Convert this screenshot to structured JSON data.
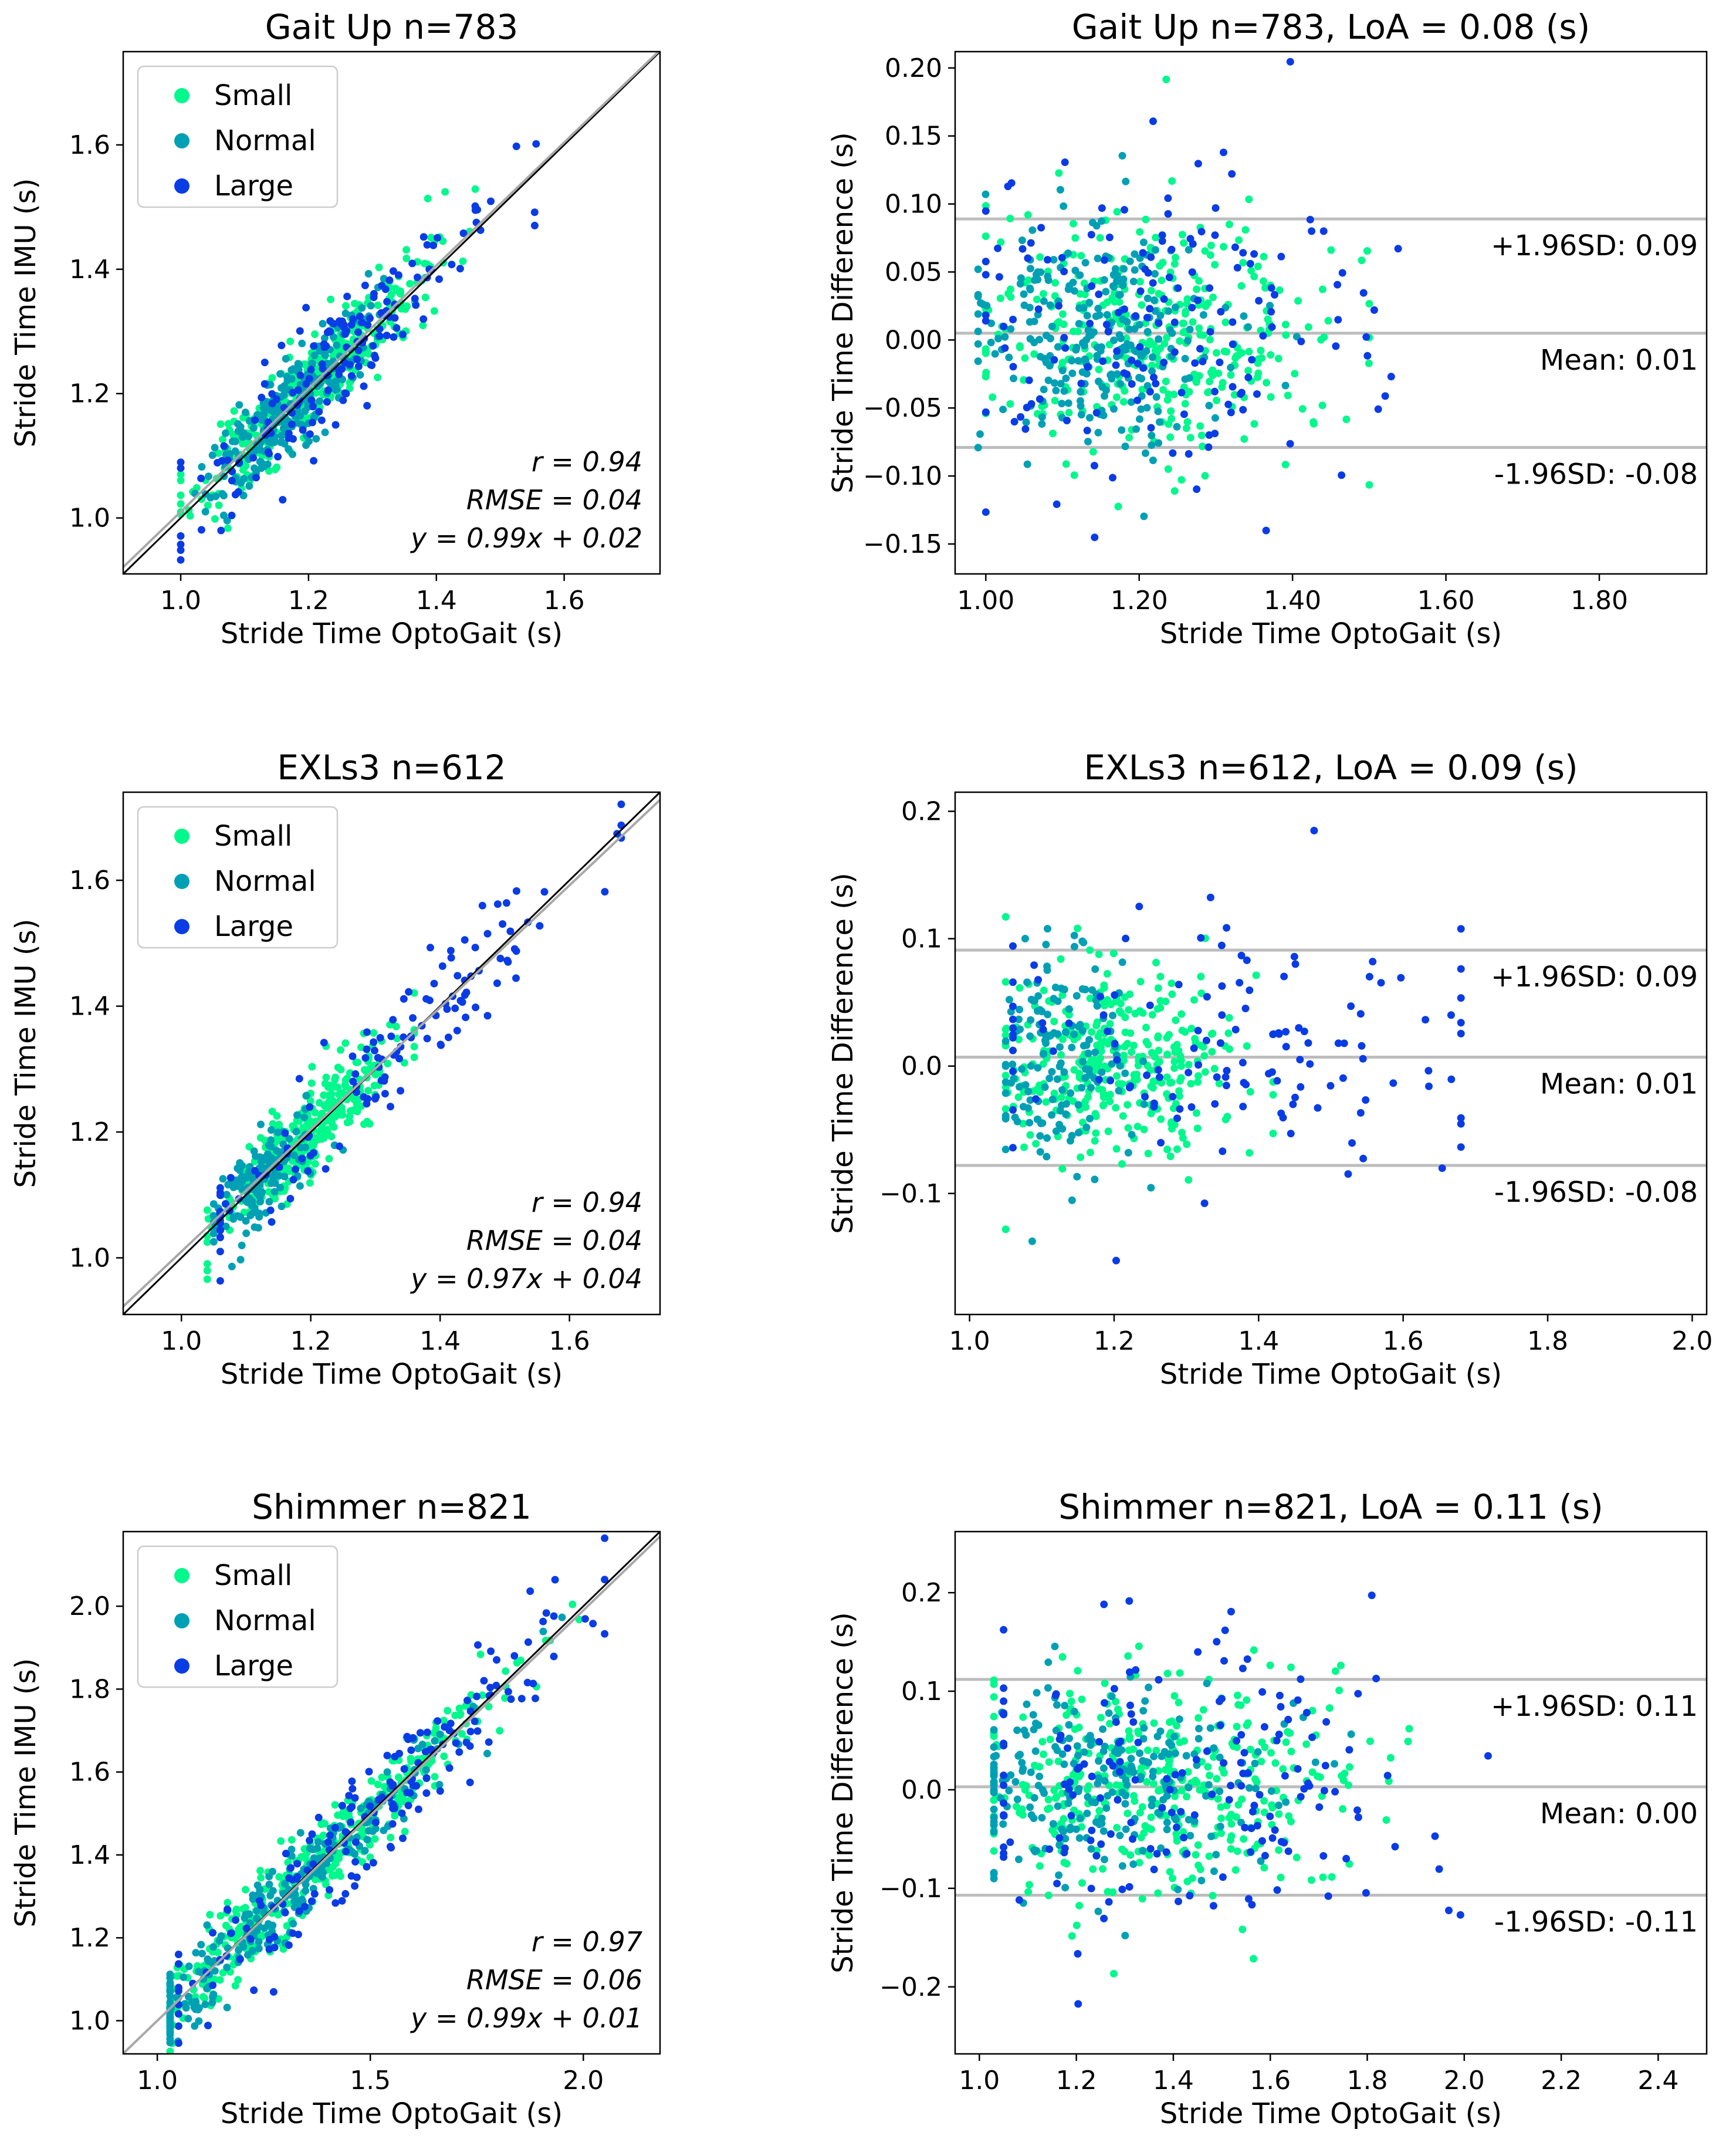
{
  "colors": {
    "small": "#00f88c",
    "normal": "#00a0b4",
    "large": "#0a3ce6",
    "identity_line": "#000000",
    "regression_line": "#a8a8a8",
    "bland_altman_lines": "#bdbdbd"
  },
  "chart_data": [
    {
      "id": "gaitup-scatter",
      "type": "scatter",
      "title": "Gait Up  n=783",
      "xlabel": "Stride Time OptoGait (s)",
      "ylabel": "Stride Time IMU (s)",
      "xlim": [
        0.91,
        1.75
      ],
      "ylim": [
        0.91,
        1.75
      ],
      "xticks": [
        1.0,
        1.2,
        1.4,
        1.6
      ],
      "yticks": [
        1.0,
        1.2,
        1.4,
        1.6
      ],
      "tick_decimals": 1,
      "grid": false,
      "legend": {
        "placement": "top-left",
        "entries": [
          "Small",
          "Normal",
          "Large"
        ]
      },
      "stats": {
        "r": "r = 0.94",
        "rmse": "RMSE = 0.04",
        "fit": "y = 0.99x + 0.02"
      },
      "fit": {
        "slope": 0.99,
        "intercept": 0.02
      },
      "series": [
        {
          "name": "Small",
          "color_key": "small",
          "n": 360,
          "x_center": 1.2,
          "x_sd": 0.09,
          "x_min": 1.0,
          "x_max": 1.55,
          "slope": 0.99,
          "intercept": 0.02,
          "y_sd": 0.035,
          "seed": 11
        },
        {
          "name": "Normal",
          "color_key": "normal",
          "n": 260,
          "x_center": 1.17,
          "x_sd": 0.06,
          "x_min": 0.98,
          "x_max": 1.5,
          "slope": 0.99,
          "intercept": 0.02,
          "y_sd": 0.035,
          "seed": 12
        },
        {
          "name": "Large",
          "color_key": "large",
          "n": 163,
          "x_center": 1.22,
          "x_sd": 0.13,
          "x_min": 1.0,
          "x_max": 1.62,
          "slope": 0.99,
          "intercept": 0.02,
          "y_sd": 0.05,
          "seed": 13
        }
      ]
    },
    {
      "id": "gaitup-ba",
      "type": "scatter",
      "title": "Gait Up  n=783,   LoA = 0.08 (s)",
      "xlabel": "Stride Time OptoGait (s)",
      "ylabel": "Stride Time Difference (s)",
      "xlim": [
        0.96,
        1.94
      ],
      "ylim": [
        -0.172,
        0.212
      ],
      "xticks": [
        1.0,
        1.2,
        1.4,
        1.6,
        1.8
      ],
      "yticks": [
        -0.15,
        -0.1,
        -0.05,
        0.0,
        0.05,
        0.1,
        0.15,
        0.2
      ],
      "tick_decimals": 2,
      "grid": false,
      "lines": [
        {
          "y": 0.089,
          "label": "+1.96SD: 0.09"
        },
        {
          "y": 0.005,
          "label": "Mean: 0.01"
        },
        {
          "y": -0.079,
          "label": "-1.96SD: -0.08"
        }
      ],
      "series": [
        {
          "name": "Small",
          "color_key": "small",
          "n": 360,
          "x_center": 1.22,
          "x_sd": 0.12,
          "x_min": 1.0,
          "x_max": 1.5,
          "mean": 0.004,
          "y_sd": 0.045,
          "seed": 21
        },
        {
          "name": "Normal",
          "color_key": "normal",
          "n": 260,
          "x_center": 1.14,
          "x_sd": 0.08,
          "x_min": 0.99,
          "x_max": 1.45,
          "mean": 0.004,
          "y_sd": 0.04,
          "seed": 22
        },
        {
          "name": "Large",
          "color_key": "large",
          "n": 163,
          "x_center": 1.22,
          "x_sd": 0.14,
          "x_min": 1.0,
          "x_max": 1.63,
          "mean": 0.008,
          "y_sd": 0.06,
          "seed": 23
        }
      ]
    },
    {
      "id": "exls3-scatter",
      "type": "scatter",
      "title": "EXLs3  n=612",
      "xlabel": "Stride Time OptoGait (s)",
      "ylabel": "Stride Time IMU (s)",
      "xlim": [
        0.91,
        1.74
      ],
      "ylim": [
        0.91,
        1.74
      ],
      "xticks": [
        1.0,
        1.2,
        1.4,
        1.6
      ],
      "yticks": [
        1.0,
        1.2,
        1.4,
        1.6
      ],
      "tick_decimals": 1,
      "grid": false,
      "legend": {
        "placement": "top-left",
        "entries": [
          "Small",
          "Normal",
          "Large"
        ]
      },
      "stats": {
        "r": "r = 0.94",
        "rmse": "RMSE = 0.04",
        "fit": "y = 0.97x + 0.04"
      },
      "fit": {
        "slope": 0.97,
        "intercept": 0.04
      },
      "series": [
        {
          "name": "Small",
          "color_key": "small",
          "n": 330,
          "x_center": 1.2,
          "x_sd": 0.07,
          "x_min": 1.04,
          "x_max": 1.36,
          "slope": 0.97,
          "intercept": 0.04,
          "y_sd": 0.035,
          "seed": 31
        },
        {
          "name": "Normal",
          "color_key": "normal",
          "n": 150,
          "x_center": 1.12,
          "x_sd": 0.04,
          "x_min": 1.05,
          "x_max": 1.25,
          "slope": 0.97,
          "intercept": 0.04,
          "y_sd": 0.035,
          "seed": 32
        },
        {
          "name": "Large",
          "color_key": "large",
          "n": 132,
          "x_center": 1.3,
          "x_sd": 0.19,
          "x_min": 1.06,
          "x_max": 1.68,
          "slope": 0.97,
          "intercept": 0.04,
          "y_sd": 0.045,
          "seed": 33
        }
      ]
    },
    {
      "id": "exls3-ba",
      "type": "scatter",
      "title": "EXLs3  n=612,   LoA = 0.09 (s)",
      "xlabel": "Stride Time OptoGait (s)",
      "ylabel": "Stride Time Difference (s)",
      "xlim": [
        0.98,
        2.02
      ],
      "ylim": [
        -0.195,
        0.215
      ],
      "xticks": [
        1.0,
        1.2,
        1.4,
        1.6,
        1.8,
        2.0
      ],
      "yticks": [
        -0.1,
        0.0,
        0.1,
        0.2
      ],
      "tick_decimals": 1,
      "grid": false,
      "lines": [
        {
          "y": 0.091,
          "label": "+1.96SD: 0.09"
        },
        {
          "y": 0.007,
          "label": "Mean: 0.01"
        },
        {
          "y": -0.078,
          "label": "-1.96SD: -0.08"
        }
      ],
      "series": [
        {
          "name": "Small",
          "color_key": "small",
          "n": 330,
          "x_center": 1.2,
          "x_sd": 0.08,
          "x_min": 1.05,
          "x_max": 1.42,
          "mean": 0.006,
          "y_sd": 0.04,
          "seed": 41
        },
        {
          "name": "Normal",
          "color_key": "normal",
          "n": 150,
          "x_center": 1.12,
          "x_sd": 0.05,
          "x_min": 1.05,
          "x_max": 1.3,
          "mean": 0.01,
          "y_sd": 0.045,
          "seed": 42
        },
        {
          "name": "Large",
          "color_key": "large",
          "n": 132,
          "x_center": 1.35,
          "x_sd": 0.2,
          "x_min": 1.06,
          "x_max": 1.68,
          "mean": 0.005,
          "y_sd": 0.055,
          "seed": 43
        }
      ]
    },
    {
      "id": "shimmer-scatter",
      "type": "scatter",
      "title": "Shimmer  n=821",
      "xlabel": "Stride Time OptoGait (s)",
      "ylabel": "Stride Time IMU (s)",
      "xlim": [
        0.92,
        2.18
      ],
      "ylim": [
        0.92,
        2.18
      ],
      "xticks": [
        1.0,
        1.5,
        2.0
      ],
      "yticks": [
        1.0,
        1.2,
        1.4,
        1.6,
        1.8,
        2.0
      ],
      "tick_decimals": 1,
      "grid": false,
      "legend": {
        "placement": "top-left",
        "entries": [
          "Small",
          "Normal",
          "Large"
        ]
      },
      "stats": {
        "r": "r = 0.97",
        "rmse": "RMSE = 0.06",
        "fit": "y = 0.99x + 0.01"
      },
      "fit": {
        "slope": 0.99,
        "intercept": 0.01
      },
      "series": [
        {
          "name": "Small",
          "color_key": "small",
          "n": 400,
          "x_center": 1.35,
          "x_sd": 0.22,
          "x_min": 1.03,
          "x_max": 2.0,
          "slope": 0.99,
          "intercept": 0.01,
          "y_sd": 0.05,
          "seed": 51
        },
        {
          "name": "Normal",
          "color_key": "normal",
          "n": 250,
          "x_center": 1.3,
          "x_sd": 0.2,
          "x_min": 1.03,
          "x_max": 1.95,
          "slope": 0.99,
          "intercept": 0.01,
          "y_sd": 0.05,
          "seed": 52
        },
        {
          "name": "Large",
          "color_key": "large",
          "n": 171,
          "x_center": 1.5,
          "x_sd": 0.25,
          "x_min": 1.05,
          "x_max": 2.05,
          "slope": 0.99,
          "intercept": 0.01,
          "y_sd": 0.07,
          "seed": 53
        }
      ]
    },
    {
      "id": "shimmer-ba",
      "type": "scatter",
      "title": "Shimmer  n=821,   LoA = 0.11 (s)",
      "xlabel": "Stride Time OptoGait (s)",
      "ylabel": "Stride Time Difference (s)",
      "xlim": [
        0.95,
        2.5
      ],
      "ylim": [
        -0.268,
        0.262
      ],
      "xticks": [
        1.0,
        1.2,
        1.4,
        1.6,
        1.8,
        2.0,
        2.2,
        2.4
      ],
      "yticks": [
        -0.2,
        -0.1,
        0.0,
        0.1,
        0.2
      ],
      "tick_decimals": 1,
      "grid": false,
      "lines": [
        {
          "y": 0.112,
          "label": "+1.96SD: 0.11"
        },
        {
          "y": 0.003,
          "label": "Mean: 0.00"
        },
        {
          "y": -0.107,
          "label": "-1.96SD: -0.11"
        }
      ],
      "series": [
        {
          "name": "Small",
          "color_key": "small",
          "n": 400,
          "x_center": 1.35,
          "x_sd": 0.22,
          "x_min": 1.03,
          "x_max": 2.02,
          "mean": 0.0,
          "y_sd": 0.055,
          "seed": 61
        },
        {
          "name": "Normal",
          "color_key": "normal",
          "n": 250,
          "x_center": 1.25,
          "x_sd": 0.18,
          "x_min": 1.03,
          "x_max": 1.95,
          "mean": 0.004,
          "y_sd": 0.05,
          "seed": 62
        },
        {
          "name": "Large",
          "color_key": "large",
          "n": 171,
          "x_center": 1.45,
          "x_sd": 0.25,
          "x_min": 1.05,
          "x_max": 2.05,
          "mean": 0.0,
          "y_sd": 0.075,
          "seed": 63
        }
      ]
    }
  ]
}
